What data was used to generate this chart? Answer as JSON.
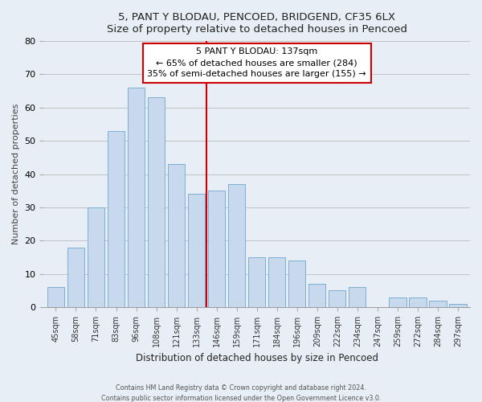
{
  "title": "5, PANT Y BLODAU, PENCOED, BRIDGEND, CF35 6LX",
  "subtitle": "Size of property relative to detached houses in Pencoed",
  "xlabel": "Distribution of detached houses by size in Pencoed",
  "ylabel": "Number of detached properties",
  "categories": [
    "45sqm",
    "58sqm",
    "71sqm",
    "83sqm",
    "96sqm",
    "108sqm",
    "121sqm",
    "133sqm",
    "146sqm",
    "159sqm",
    "171sqm",
    "184sqm",
    "196sqm",
    "209sqm",
    "222sqm",
    "234sqm",
    "247sqm",
    "259sqm",
    "272sqm",
    "284sqm",
    "297sqm"
  ],
  "values": [
    6,
    18,
    30,
    53,
    66,
    63,
    43,
    34,
    35,
    37,
    15,
    15,
    14,
    7,
    5,
    6,
    0,
    3,
    3,
    2,
    1
  ],
  "bar_color": "#c8d8ed",
  "bar_edge_color": "#7bafd4",
  "vline_color": "#cc0000",
  "annotation_title": "5 PANT Y BLODAU: 137sqm",
  "annotation_line1": "← 65% of detached houses are smaller (284)",
  "annotation_line2": "35% of semi-detached houses are larger (155) →",
  "annotation_box_color": "#ffffff",
  "annotation_box_edge": "#cc0000",
  "footer1": "Contains HM Land Registry data © Crown copyright and database right 2024.",
  "footer2": "Contains public sector information licensed under the Open Government Licence v3.0.",
  "ylim": [
    0,
    80
  ],
  "background_color": "#e8eef5",
  "plot_bg_color": "#e8eef5"
}
